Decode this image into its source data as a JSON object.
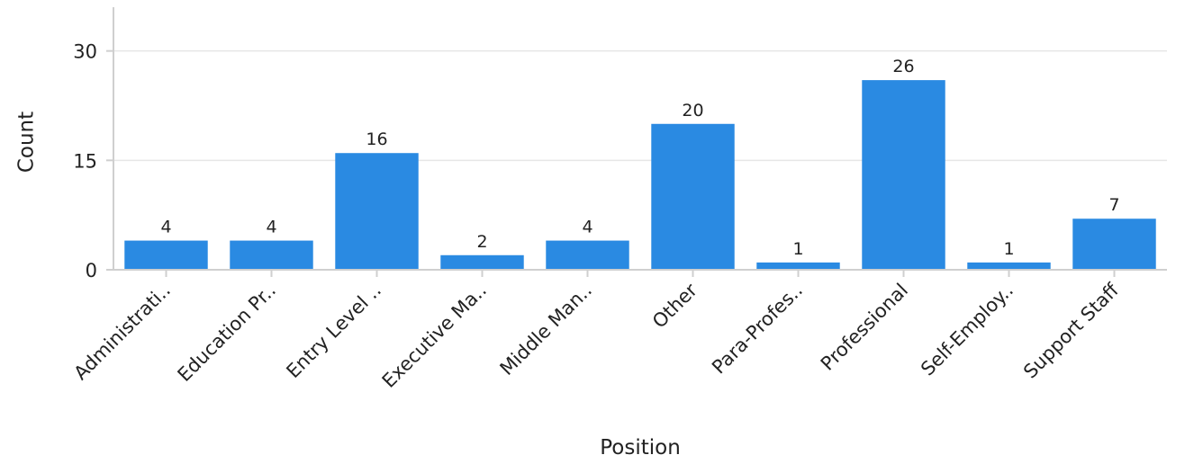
{
  "chart_data": {
    "type": "bar",
    "categories": [
      "Administrati..",
      "Education Pr..",
      "Entry Level ..",
      "Executive Ma..",
      "Middle Man..",
      "Other",
      "Para-Profes..",
      "Professional",
      "Self-Employ..",
      "Support Staff"
    ],
    "values": [
      4,
      4,
      16,
      2,
      4,
      20,
      1,
      26,
      1,
      7
    ],
    "xlabel": "Position",
    "ylabel": "Count",
    "ylim": [
      0,
      36
    ],
    "yticks": [
      0,
      15,
      30
    ],
    "grid": true,
    "bar_color": "#2a8ae2"
  }
}
